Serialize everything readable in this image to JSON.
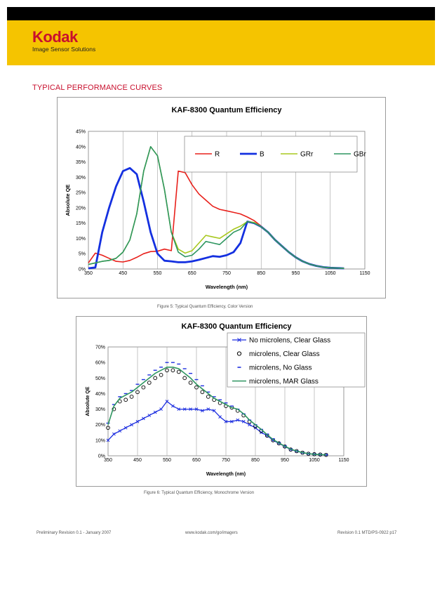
{
  "header": {
    "logo_word": "Kodak",
    "logo_sub": "Image Sensor Solutions",
    "brand_color": "#C8102E",
    "band_color": "#F5C400"
  },
  "section_title": "TYPICAL PERFORMANCE CURVES",
  "captions": {
    "figure1": "Figure 5: Typical Quantum Efficiency, Color Version",
    "figure2": "Figure 6: Typical Quantum Efficiency, Monochrome Version"
  },
  "footer": {
    "left": "Preliminary Revision 0.1 - January 2007",
    "center": "www.kodak.com/go/imagers",
    "right": "Revision 0.1 MTD/PS-0922 p17"
  },
  "chart_data": [
    {
      "type": "line",
      "title": "KAF-8300 Quantum Efficiency",
      "xlabel": "Wavelength (nm)",
      "ylabel": "Absolute QE",
      "xlim": [
        350,
        1150
      ],
      "ylim": [
        0,
        0.45
      ],
      "xticks": [
        350,
        450,
        550,
        650,
        750,
        850,
        950,
        1050,
        1150
      ],
      "yticks": [
        0,
        0.05,
        0.1,
        0.15,
        0.2,
        0.25,
        0.3,
        0.35,
        0.4,
        0.45
      ],
      "ytick_labels": [
        "0%",
        "5%",
        "10%",
        "15%",
        "20%",
        "25%",
        "30%",
        "35%",
        "40%",
        "45%"
      ],
      "grid": "vertical",
      "legend": "top-right",
      "x": [
        350,
        370,
        390,
        410,
        430,
        450,
        470,
        490,
        510,
        530,
        550,
        570,
        590,
        610,
        630,
        650,
        670,
        690,
        710,
        730,
        750,
        770,
        790,
        810,
        830,
        850,
        870,
        890,
        910,
        930,
        950,
        970,
        990,
        1010,
        1030,
        1050,
        1070,
        1090
      ],
      "series": [
        {
          "name": "R",
          "color": "#E8201B",
          "values": [
            0.02,
            0.052,
            0.045,
            0.035,
            0.025,
            0.023,
            0.028,
            0.038,
            0.05,
            0.057,
            0.058,
            0.065,
            0.06,
            0.32,
            0.315,
            0.275,
            0.245,
            0.225,
            0.205,
            0.195,
            0.19,
            0.185,
            0.18,
            0.17,
            0.158,
            0.14,
            0.12,
            0.095,
            0.075,
            0.055,
            0.038,
            0.025,
            0.016,
            0.01,
            0.006,
            0.004,
            0.003,
            0.002
          ]
        },
        {
          "name": "B",
          "color": "#1430E0",
          "values": [
            0.002,
            0.005,
            0.12,
            0.2,
            0.27,
            0.32,
            0.33,
            0.31,
            0.22,
            0.12,
            0.05,
            0.027,
            0.025,
            0.022,
            0.022,
            0.025,
            0.03,
            0.036,
            0.042,
            0.04,
            0.045,
            0.055,
            0.085,
            0.155,
            0.15,
            0.138,
            0.12,
            0.095,
            0.075,
            0.055,
            0.038,
            0.025,
            0.016,
            0.01,
            0.006,
            0.004,
            0.003,
            0.002
          ]
        },
        {
          "name": "GRr",
          "color": "#A8C81E",
          "values": [
            0.015,
            0.02,
            0.025,
            0.028,
            0.035,
            0.055,
            0.095,
            0.18,
            0.32,
            0.4,
            0.37,
            0.26,
            0.12,
            0.065,
            0.052,
            0.06,
            0.085,
            0.11,
            0.105,
            0.1,
            0.115,
            0.13,
            0.14,
            0.155,
            0.152,
            0.138,
            0.12,
            0.095,
            0.075,
            0.055,
            0.038,
            0.025,
            0.016,
            0.01,
            0.006,
            0.004,
            0.003,
            0.002
          ]
        },
        {
          "name": "GBr",
          "color": "#2E9660",
          "values": [
            0.015,
            0.02,
            0.025,
            0.028,
            0.035,
            0.055,
            0.095,
            0.18,
            0.32,
            0.4,
            0.37,
            0.26,
            0.12,
            0.055,
            0.04,
            0.045,
            0.065,
            0.09,
            0.085,
            0.08,
            0.1,
            0.12,
            0.13,
            0.155,
            0.15,
            0.138,
            0.12,
            0.095,
            0.075,
            0.055,
            0.038,
            0.025,
            0.016,
            0.01,
            0.006,
            0.004,
            0.003,
            0.002
          ]
        }
      ]
    },
    {
      "type": "line",
      "title": "KAF-8300 Quantum Efficiency",
      "xlabel": "Wavelength (nm)",
      "ylabel": "Absolute QE",
      "xlim": [
        350,
        1150
      ],
      "ylim": [
        0,
        0.7
      ],
      "xticks": [
        350,
        450,
        550,
        650,
        750,
        850,
        950,
        1050,
        1150
      ],
      "yticks": [
        0,
        0.1,
        0.2,
        0.3,
        0.4,
        0.5,
        0.6,
        0.7
      ],
      "ytick_labels": [
        "0%",
        "10%",
        "20%",
        "30%",
        "40%",
        "50%",
        "60%",
        "70%"
      ],
      "grid": "vertical",
      "legend": "top-right",
      "x": [
        350,
        370,
        390,
        410,
        430,
        450,
        470,
        490,
        510,
        530,
        550,
        570,
        590,
        610,
        630,
        650,
        670,
        690,
        710,
        730,
        750,
        770,
        790,
        810,
        830,
        850,
        870,
        890,
        910,
        930,
        950,
        970,
        990,
        1010,
        1030,
        1050,
        1070,
        1090
      ],
      "series": [
        {
          "name": "No microlens, Clear Glass",
          "color": "#1E2FE0",
          "marker": "x",
          "values": [
            0.1,
            0.14,
            0.16,
            0.18,
            0.2,
            0.22,
            0.24,
            0.26,
            0.28,
            0.3,
            0.35,
            0.32,
            0.3,
            0.3,
            0.3,
            0.3,
            0.29,
            0.3,
            0.29,
            0.25,
            0.22,
            0.22,
            0.23,
            0.22,
            0.2,
            0.18,
            0.15,
            0.13,
            0.1,
            0.08,
            0.06,
            0.04,
            0.03,
            0.02,
            0.013,
            0.01,
            0.008,
            0.006
          ]
        },
        {
          "name": "microlens, Clear Glass",
          "color": "#000000",
          "marker": "circle",
          "values": [
            0.18,
            0.3,
            0.35,
            0.36,
            0.38,
            0.41,
            0.44,
            0.47,
            0.5,
            0.52,
            0.55,
            0.55,
            0.54,
            0.5,
            0.47,
            0.44,
            0.41,
            0.38,
            0.36,
            0.34,
            0.32,
            0.31,
            0.29,
            0.26,
            0.22,
            0.19,
            0.16,
            0.13,
            0.1,
            0.08,
            0.06,
            0.04,
            0.03,
            0.02,
            0.013,
            0.01,
            0.008,
            0.006
          ]
        },
        {
          "name": "microlens, No Glass",
          "color": "#1E2FE0",
          "marker": "dash",
          "values": [
            0.21,
            0.33,
            0.38,
            0.4,
            0.42,
            0.46,
            0.49,
            0.52,
            0.55,
            0.57,
            0.6,
            0.6,
            0.59,
            0.56,
            0.53,
            0.49,
            0.45,
            0.41,
            0.38,
            0.36,
            0.34,
            0.32,
            0.3,
            0.27,
            0.23,
            0.2,
            0.17,
            0.14,
            0.11,
            0.085,
            0.065,
            0.045,
            0.032,
            0.022,
            0.015,
            0.011,
            0.009,
            0.007
          ]
        },
        {
          "name": "microlens, MAR Glass",
          "color": "#2E9660",
          "marker": "none",
          "values": [
            0.2,
            0.32,
            0.37,
            0.39,
            0.41,
            0.44,
            0.47,
            0.5,
            0.53,
            0.55,
            0.57,
            0.57,
            0.56,
            0.53,
            0.5,
            0.46,
            0.43,
            0.4,
            0.37,
            0.35,
            0.33,
            0.31,
            0.3,
            0.27,
            0.23,
            0.2,
            0.17,
            0.135,
            0.105,
            0.082,
            0.062,
            0.043,
            0.031,
            0.021,
            0.014,
            0.01,
            0.008,
            0.006
          ]
        }
      ]
    }
  ]
}
